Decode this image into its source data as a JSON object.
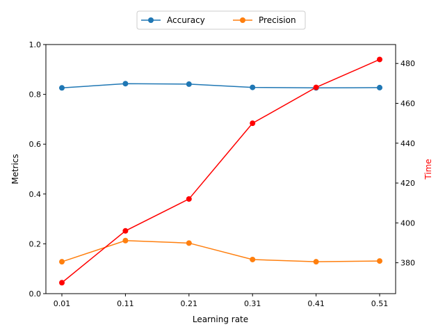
{
  "chart_data": {
    "type": "line",
    "x": [
      "0.01",
      "0.11",
      "0.21",
      "0.31",
      "0.41",
      "0.51"
    ],
    "xlabel": "Learning rate",
    "ylabel_left": "Metrics",
    "ylabel_right": "Time",
    "ylim_left": [
      0,
      1
    ],
    "ylim_right": [
      364.5,
      489.5
    ],
    "yticks_left": [
      "0.0",
      "0.2",
      "0.4",
      "0.6",
      "0.8",
      "1.0"
    ],
    "yticks_right": [
      "380",
      "400",
      "420",
      "440",
      "460",
      "480"
    ],
    "grid": false,
    "legend_position": "top-center",
    "series": [
      {
        "name": "Accuracy",
        "axis": "left",
        "color": "#1f77b4",
        "values": [
          0.826,
          0.843,
          0.841,
          0.828,
          0.826,
          0.827
        ]
      },
      {
        "name": "Precision",
        "axis": "left",
        "color": "#ff7f0e",
        "values": [
          0.128,
          0.213,
          0.203,
          0.137,
          0.128,
          0.131
        ]
      },
      {
        "axis": "right",
        "color": "#ff0000",
        "values": [
          370,
          396,
          412,
          450,
          468,
          482
        ]
      }
    ],
    "right_label_color": "#ff0000"
  }
}
